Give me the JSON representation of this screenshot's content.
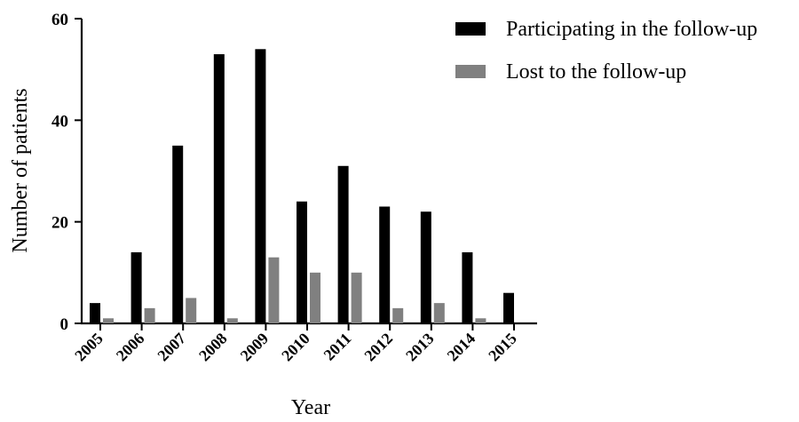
{
  "chart_data": {
    "type": "bar",
    "title": "",
    "xlabel": "Year",
    "ylabel": "Number of patients",
    "categories": [
      "2005",
      "2006",
      "2007",
      "2008",
      "2009",
      "2010",
      "2011",
      "2012",
      "2013",
      "2014",
      "2015"
    ],
    "series": [
      {
        "name": "Participating in the follow-up",
        "color": "#000000",
        "values": [
          4,
          14,
          35,
          53,
          54,
          24,
          31,
          23,
          22,
          14,
          6
        ]
      },
      {
        "name": "Lost to the follow-up",
        "color": "#808080",
        "values": [
          1,
          3,
          5,
          1,
          13,
          10,
          10,
          3,
          4,
          1,
          0
        ]
      }
    ],
    "ylim": [
      0,
      60
    ],
    "yticks": [
      0,
      20,
      40,
      60
    ],
    "grid": false,
    "legend_position": "top-right"
  }
}
